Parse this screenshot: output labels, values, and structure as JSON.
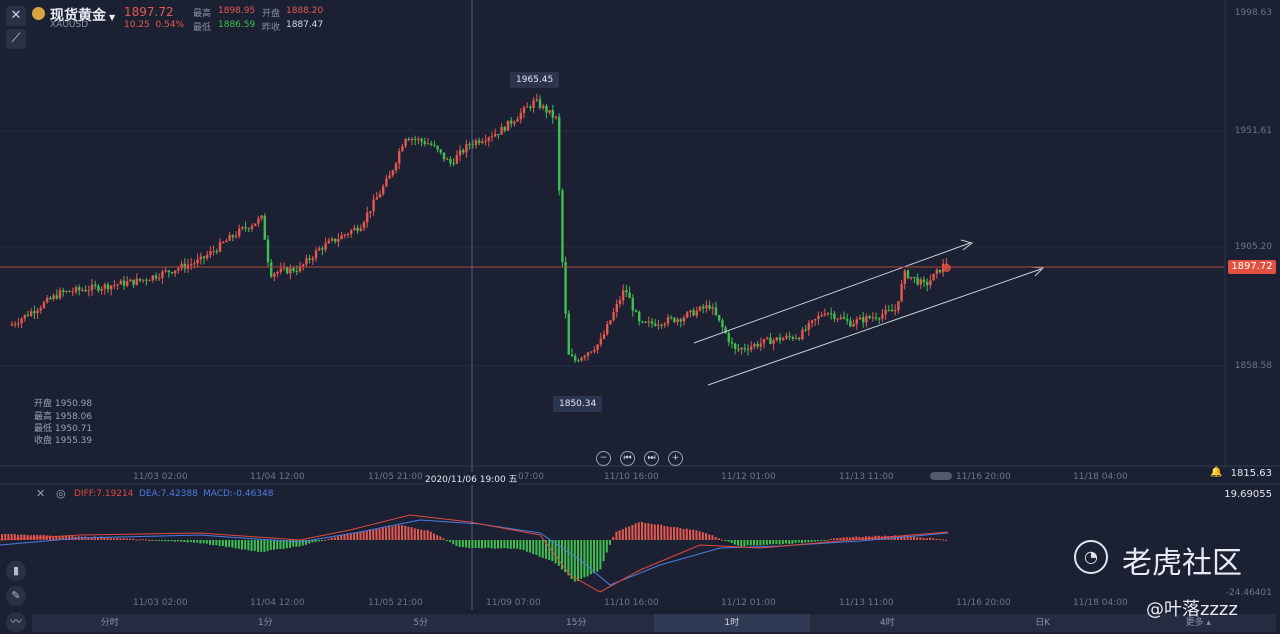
{
  "symbol": {
    "name": "现货黄金",
    "dropdown_icon": "caret-down-icon",
    "code": "XAUUSD",
    "price": "1897.72",
    "change": "10.25",
    "change_pct": "0.54%",
    "high_label": "最高",
    "high": "1898.95",
    "open_label": "开盘",
    "open": "1888.20",
    "low_label": "最低",
    "low": "1886.59",
    "prev_close_label": "昨收",
    "prev_close": "1887.47"
  },
  "toolbar": {
    "close_icon": "close-icon",
    "draw_icon": "draw-line-icon"
  },
  "crosshair_ohlc": [
    {
      "label": "开盘",
      "value": "1950.98"
    },
    {
      "label": "最高",
      "value": "1958.06"
    },
    {
      "label": "最低",
      "value": "1950.71"
    },
    {
      "label": "收盘",
      "value": "1955.39"
    }
  ],
  "annotations": {
    "max_label": "1965.45",
    "min_label": "1850.34"
  },
  "y_axis": {
    "top": "1998.63",
    "ticks": [
      "1951.61",
      "1905.20",
      "1858.58"
    ],
    "current_price": "1897.72",
    "bottom": "1815.63"
  },
  "x_axis": {
    "labels": [
      "11/03 02:00",
      "11/04 12:00",
      "11/05 21:00",
      "11/10 16:00",
      "11/12 01:00",
      "11/13 11:00",
      "11/16 20:00",
      "11/18 04:00"
    ],
    "crosshair_label": "2020/11/06 19:00 五",
    "crosshair_tail": "07:00"
  },
  "macd": {
    "diff_label": "DIFF:7.19214",
    "dea_label": "DEA:7.42388",
    "macd_label": "MACD:-0.46348",
    "top": "19.69055",
    "bottom": "-24.46401",
    "x_labels": [
      "11/03 02:00",
      "11/04 12:00",
      "11/05 21:00",
      "11/09 07:00",
      "11/10 16:00",
      "11/12 01:00",
      "11/13 11:00",
      "11/16 20:00",
      "11/18 04:00"
    ]
  },
  "timeframes": [
    "分时",
    "1分",
    "5分",
    "15分",
    "1时",
    "4时",
    "日K",
    "更多"
  ],
  "active_timeframe": "1时",
  "nav_buttons": [
    "zoom-out-icon",
    "skip-back-icon",
    "skip-forward-icon",
    "zoom-in-icon"
  ],
  "watermark": {
    "brand": "老虎社区",
    "user": "@叶落zzzz"
  },
  "colors": {
    "up": "#e6584e",
    "down": "#3fbf4f",
    "background": "#1b2133",
    "diff": "#e0483f",
    "dea": "#4c7ce0"
  },
  "chart_data": {
    "type": "candlestick",
    "x_range": [
      "11/02",
      "11/18 04:00"
    ],
    "y_range": [
      1815.63,
      1998.63
    ],
    "key_points": [
      {
        "x": "11/02 start",
        "price": 1880
      },
      {
        "x": "11/03 02:00",
        "price": 1895
      },
      {
        "x": "11/04 12:00",
        "price": 1905
      },
      {
        "x": "11/05 21:00",
        "price": 1945
      },
      {
        "x": "11/06 19:00",
        "price": 1950
      },
      {
        "x": "11/09 peak",
        "price": 1965.45
      },
      {
        "x": "11/09 low",
        "price": 1850.34
      },
      {
        "x": "11/10 16:00",
        "price": 1880
      },
      {
        "x": "11/12 01:00",
        "price": 1865
      },
      {
        "x": "11/13 11:00",
        "price": 1880
      },
      {
        "x": "11/16",
        "price": 1897.72
      }
    ],
    "drawings": "ascending channel (two parallel arrowed lines)"
  }
}
